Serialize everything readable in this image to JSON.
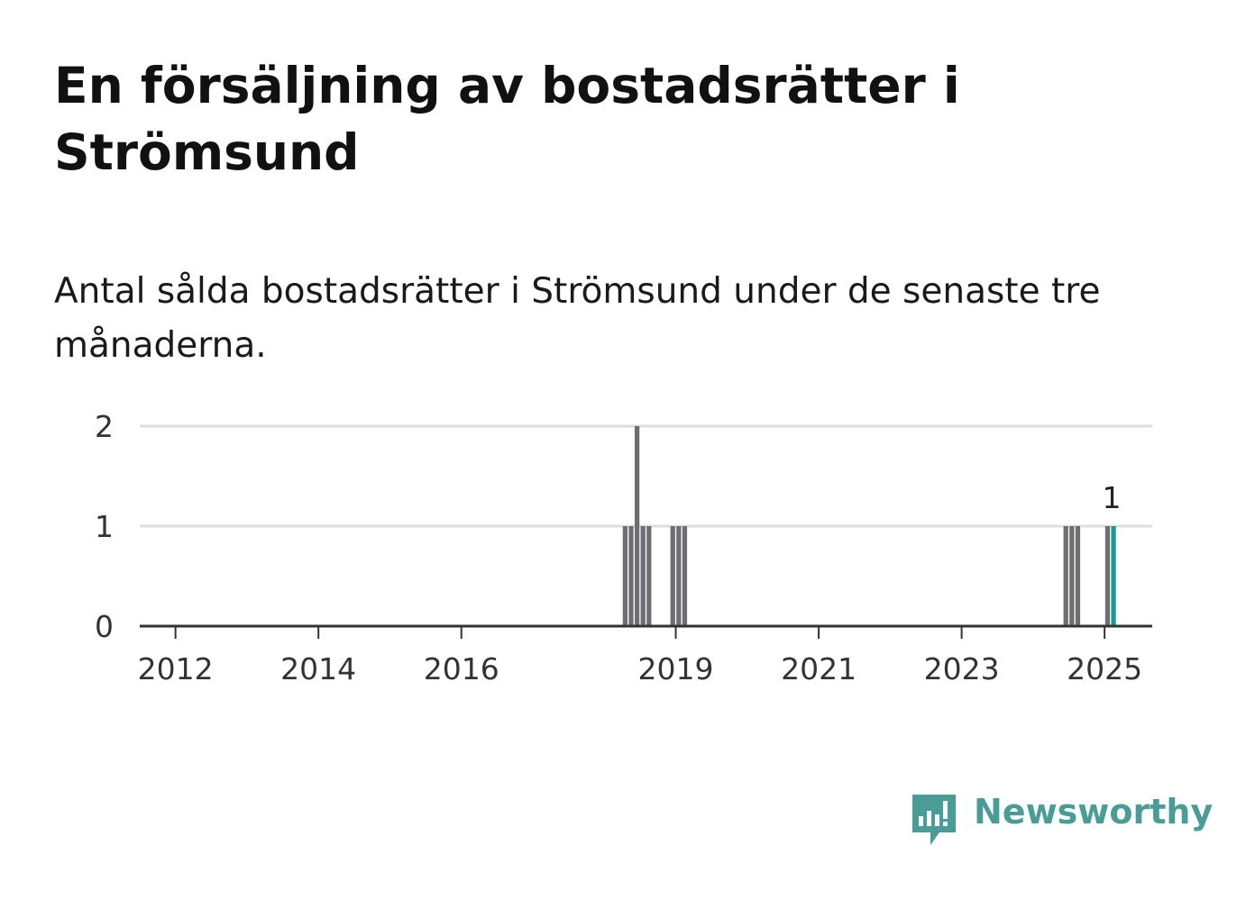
{
  "title": "En försäljning av bostadsrätter i Strömsund",
  "subtitle": "Antal sålda bostadsrätter i Strömsund under de senaste tre månaderna.",
  "brand": {
    "name": "Newsworthy"
  },
  "colors": {
    "bar": "#6e6e72",
    "highlight": "#1a9a97",
    "grid": "#dddddd",
    "axis": "#333333",
    "brand": "#4a9d97"
  },
  "chart_data": {
    "type": "bar",
    "x_axis": "quarterly periods (date)",
    "xlim": [
      "2011-07",
      "2025-09"
    ],
    "ylim": [
      0,
      2
    ],
    "y_ticks": [
      "0",
      "1",
      "2"
    ],
    "x_ticks": [
      "2012",
      "2014",
      "2016",
      "2019",
      "2021",
      "2023",
      "2025"
    ],
    "grid": true,
    "series": [
      {
        "points": [
          {
            "x": "2018-04",
            "y": 1
          },
          {
            "x": "2018-05",
            "y": 1
          },
          {
            "x": "2018-06",
            "y": 2
          },
          {
            "x": "2018-07",
            "y": 1
          },
          {
            "x": "2018-08",
            "y": 1
          },
          {
            "x": "2018-12",
            "y": 1
          },
          {
            "x": "2019-01",
            "y": 1
          },
          {
            "x": "2019-02",
            "y": 1
          },
          {
            "x": "2024-06",
            "y": 1
          },
          {
            "x": "2024-07",
            "y": 1
          },
          {
            "x": "2024-08",
            "y": 1
          },
          {
            "x": "2025-01",
            "y": 1
          },
          {
            "x": "2025-02",
            "y": 1,
            "highlight": true
          }
        ]
      }
    ],
    "annotations": [
      {
        "x": "2025-02",
        "text": "1"
      }
    ]
  }
}
